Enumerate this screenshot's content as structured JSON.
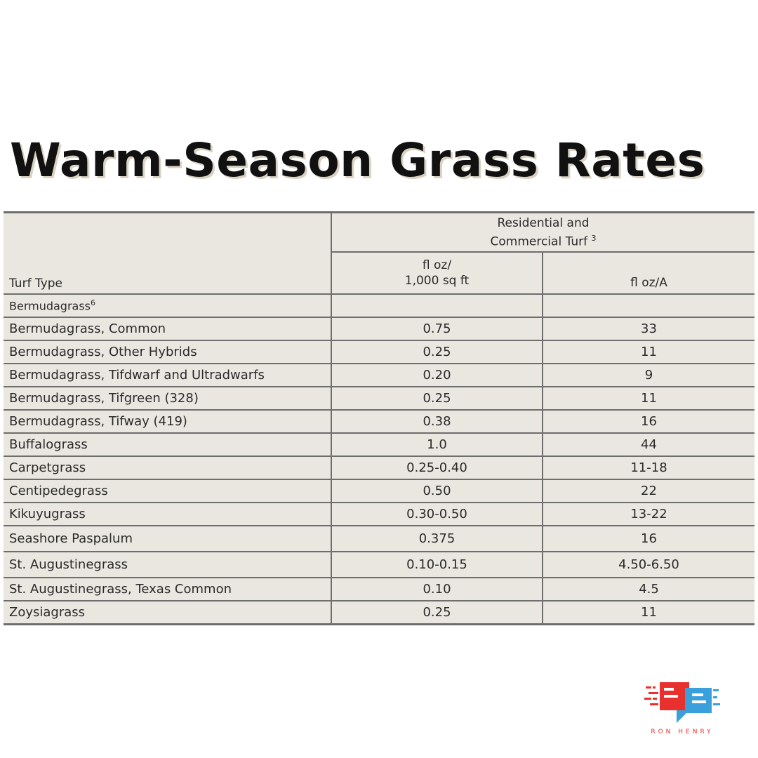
{
  "title": "Warm-Season Grass Rates",
  "table": {
    "group_header_line1": "Residential and",
    "group_header_line2": "Commercial Turf",
    "group_header_sup": "3",
    "col1_header": "Turf Type",
    "col2_header_line1": "fl oz/",
    "col2_header_line2": "1,000 sq ft",
    "col3_header": "fl oz/A",
    "section_label": "Bermudagrass",
    "section_sup": "6",
    "rows": [
      {
        "turf": "Bermudagrass, Common",
        "per_1000": "0.75",
        "per_acre": "33"
      },
      {
        "turf": "Bermudagrass, Other Hybrids",
        "per_1000": "0.25",
        "per_acre": "11"
      },
      {
        "turf": "Bermudagrass, Tifdwarf and Ultradwarfs",
        "per_1000": "0.20",
        "per_acre": "9"
      },
      {
        "turf": "Bermudagrass, Tifgreen (328)",
        "per_1000": "0.25",
        "per_acre": "11"
      },
      {
        "turf": "Bermudagrass, Tifway (419)",
        "per_1000": "0.38",
        "per_acre": "16"
      },
      {
        "turf": "Buffalograss",
        "per_1000": "1.0",
        "per_acre": "44"
      },
      {
        "turf": "Carpetgrass",
        "per_1000": "0.25-0.40",
        "per_acre": "11-18"
      },
      {
        "turf": "Centipedegrass",
        "per_1000": "0.50",
        "per_acre": "22"
      },
      {
        "turf": "Kikuyugrass",
        "per_1000": "0.30-0.50",
        "per_acre": "13-22"
      },
      {
        "turf": "Seashore Paspalum",
        "per_1000": "0.375",
        "per_acre": "16"
      },
      {
        "turf": "St. Augustinegrass",
        "per_1000": "0.10-0.15",
        "per_acre": "4.50-6.50"
      },
      {
        "turf": "St. Augustinegrass, Texas Common",
        "per_1000": "0.10",
        "per_acre": "4.5"
      },
      {
        "turf": "Zoysiagrass",
        "per_1000": "0.25",
        "per_acre": "11"
      }
    ]
  },
  "logo": {
    "text": "RON HENRY",
    "icon": "ron-henry-logo-icon",
    "colors": {
      "red": "#e8302f",
      "blue": "#3aa0dc"
    }
  }
}
